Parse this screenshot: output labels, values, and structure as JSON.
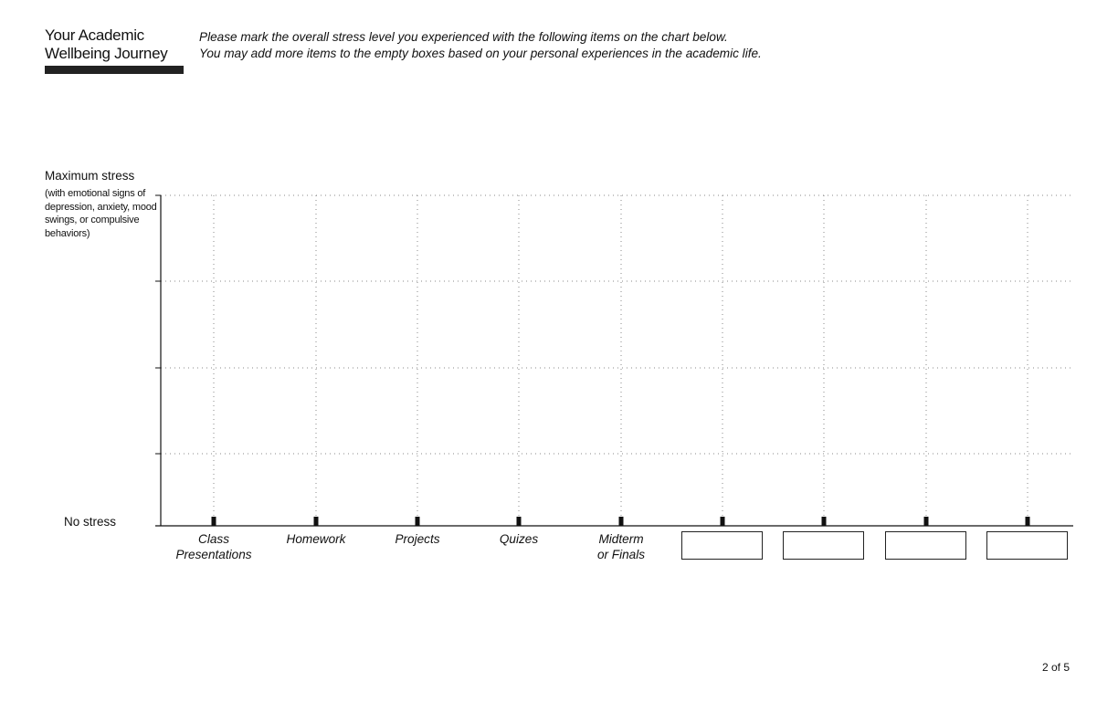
{
  "header": {
    "title_line1": "Your Academic",
    "title_line2": "Wellbeing Journey",
    "instruction_line1": "Please mark the overall stress level you experienced with the following items on the chart below.",
    "instruction_line2": "You may add more items to the empty boxes based on your personal experiences in the academic life."
  },
  "chart": {
    "max_label": "Maximum stress",
    "max_description": "(with emotional signs of depression, anxiety, mood swings, or compulsive behaviors)",
    "min_label": "No stress",
    "categories": [
      {
        "line1": "Class",
        "line2": "Presentations"
      },
      {
        "line1": "Homework",
        "line2": ""
      },
      {
        "line1": "Projects",
        "line2": ""
      },
      {
        "line1": "Quizes",
        "line2": ""
      },
      {
        "line1": "Midterm",
        "line2": "or Finals"
      }
    ],
    "blank_entry_count": 4
  },
  "footer": {
    "page_number": "2 of 5"
  },
  "colors": {
    "ink": "#111111",
    "grid": "#888888",
    "brand_bar": "#222222"
  }
}
